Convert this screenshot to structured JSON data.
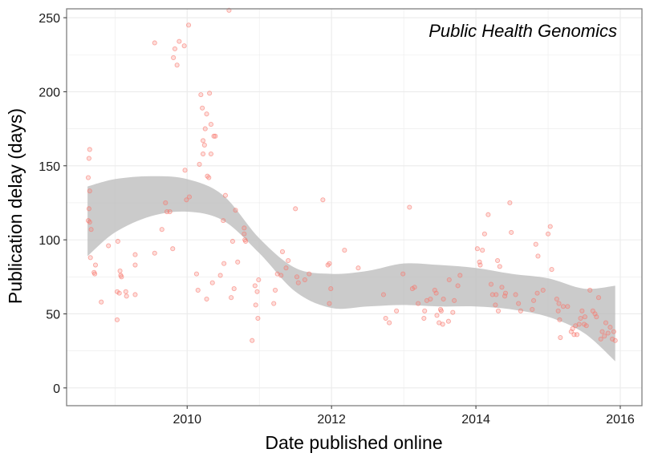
{
  "chart_data": {
    "type": "scatter",
    "title": "Public Health Genomics",
    "xlabel": "Date published online",
    "ylabel": "Publication delay (days)",
    "xlim": [
      2008.33,
      2016.3
    ],
    "ylim": [
      -12,
      256
    ],
    "x_ticks": [
      2010,
      2012,
      2014,
      2016
    ],
    "y_ticks": [
      0,
      50,
      100,
      150,
      200,
      250
    ],
    "grid": true,
    "legend": "none",
    "colors": {
      "point": "#f8766d",
      "band": "#bdbdbd",
      "panel_border": "#7f7f7f",
      "grid": "#ebebeb"
    },
    "series": [
      {
        "points": [
          [
            2008.65,
            161
          ],
          [
            2008.64,
            155
          ],
          [
            2008.63,
            142
          ],
          [
            2008.65,
            133
          ],
          [
            2008.64,
            121
          ],
          [
            2008.63,
            113
          ],
          [
            2008.65,
            112
          ],
          [
            2008.67,
            107
          ],
          [
            2008.66,
            88
          ],
          [
            2008.73,
            83
          ],
          [
            2008.71,
            78
          ],
          [
            2008.72,
            77
          ],
          [
            2008.81,
            58
          ],
          [
            2008.91,
            96
          ],
          [
            2009.04,
            99
          ],
          [
            2009.03,
            65
          ],
          [
            2009.06,
            64
          ],
          [
            2009.07,
            79
          ],
          [
            2009.08,
            76
          ],
          [
            2009.09,
            75
          ],
          [
            2009.03,
            46
          ],
          [
            2009.15,
            65
          ],
          [
            2009.16,
            62
          ],
          [
            2009.28,
            90
          ],
          [
            2009.28,
            83
          ],
          [
            2009.28,
            63
          ],
          [
            2009.55,
            233
          ],
          [
            2009.55,
            91
          ],
          [
            2009.65,
            107
          ],
          [
            2009.7,
            125
          ],
          [
            2009.72,
            119
          ],
          [
            2009.76,
            119
          ],
          [
            2009.8,
            94
          ],
          [
            2009.81,
            223
          ],
          [
            2009.83,
            229
          ],
          [
            2009.86,
            218
          ],
          [
            2009.89,
            234
          ],
          [
            2009.96,
            231
          ],
          [
            2009.99,
            127
          ],
          [
            2009.97,
            147
          ],
          [
            2010.02,
            245
          ],
          [
            2010.03,
            129
          ],
          [
            2010.13,
            77
          ],
          [
            2010.15,
            66
          ],
          [
            2010.17,
            151
          ],
          [
            2010.19,
            198
          ],
          [
            2010.21,
            189
          ],
          [
            2010.22,
            158
          ],
          [
            2010.24,
            164
          ],
          [
            2010.22,
            167
          ],
          [
            2010.25,
            175
          ],
          [
            2010.27,
            185
          ],
          [
            2010.28,
            143
          ],
          [
            2010.3,
            142
          ],
          [
            2010.31,
            199
          ],
          [
            2010.27,
            60
          ],
          [
            2010.33,
            178
          ],
          [
            2010.33,
            158
          ],
          [
            2010.35,
            71
          ],
          [
            2010.37,
            170
          ],
          [
            2010.39,
            170
          ],
          [
            2010.46,
            76
          ],
          [
            2010.5,
            113
          ],
          [
            2010.51,
            84
          ],
          [
            2010.53,
            130
          ],
          [
            2010.58,
            255
          ],
          [
            2010.61,
            61
          ],
          [
            2010.63,
            99
          ],
          [
            2010.65,
            67
          ],
          [
            2010.67,
            120
          ],
          [
            2010.7,
            85
          ],
          [
            2010.79,
            104
          ],
          [
            2010.8,
            100
          ],
          [
            2010.79,
            108
          ],
          [
            2010.81,
            99
          ],
          [
            2010.9,
            32
          ],
          [
            2010.94,
            69
          ],
          [
            2010.95,
            56
          ],
          [
            2010.97,
            65
          ],
          [
            2010.98,
            47
          ],
          [
            2010.99,
            73
          ],
          [
            2011.2,
            57
          ],
          [
            2011.22,
            66
          ],
          [
            2011.25,
            77
          ],
          [
            2011.3,
            76
          ],
          [
            2011.32,
            92
          ],
          [
            2011.37,
            81
          ],
          [
            2011.4,
            86
          ],
          [
            2011.5,
            121
          ],
          [
            2011.52,
            75
          ],
          [
            2011.54,
            71
          ],
          [
            2011.63,
            73
          ],
          [
            2011.69,
            77
          ],
          [
            2011.88,
            127
          ],
          [
            2011.95,
            83
          ],
          [
            2011.97,
            57
          ],
          [
            2011.97,
            84
          ],
          [
            2011.99,
            67
          ],
          [
            2012.18,
            93
          ],
          [
            2012.37,
            81
          ],
          [
            2012.72,
            63
          ],
          [
            2012.75,
            47
          ],
          [
            2012.8,
            44
          ],
          [
            2012.9,
            52
          ],
          [
            2012.99,
            77
          ],
          [
            2013.08,
            122
          ],
          [
            2013.12,
            67
          ],
          [
            2013.15,
            68
          ],
          [
            2013.2,
            57
          ],
          [
            2013.28,
            47
          ],
          [
            2013.29,
            52
          ],
          [
            2013.32,
            59
          ],
          [
            2013.37,
            60
          ],
          [
            2013.43,
            66
          ],
          [
            2013.45,
            64
          ],
          [
            2013.46,
            49
          ],
          [
            2013.49,
            44
          ],
          [
            2013.51,
            53
          ],
          [
            2013.52,
            52
          ],
          [
            2013.54,
            43
          ],
          [
            2013.55,
            60
          ],
          [
            2013.62,
            45
          ],
          [
            2013.63,
            73
          ],
          [
            2013.68,
            51
          ],
          [
            2013.7,
            59
          ],
          [
            2013.75,
            69
          ],
          [
            2013.78,
            76
          ],
          [
            2014.02,
            94
          ],
          [
            2014.05,
            85
          ],
          [
            2014.06,
            83
          ],
          [
            2014.09,
            93
          ],
          [
            2014.12,
            104
          ],
          [
            2014.17,
            117
          ],
          [
            2014.21,
            70
          ],
          [
            2014.23,
            63
          ],
          [
            2014.27,
            56
          ],
          [
            2014.28,
            63
          ],
          [
            2014.3,
            86
          ],
          [
            2014.31,
            52
          ],
          [
            2014.33,
            82
          ],
          [
            2014.36,
            68
          ],
          [
            2014.4,
            62
          ],
          [
            2014.41,
            64
          ],
          [
            2014.47,
            125
          ],
          [
            2014.49,
            105
          ],
          [
            2014.55,
            63
          ],
          [
            2014.59,
            57
          ],
          [
            2014.62,
            52
          ],
          [
            2014.78,
            53
          ],
          [
            2014.8,
            59
          ],
          [
            2014.83,
            97
          ],
          [
            2014.85,
            64
          ],
          [
            2014.86,
            89
          ],
          [
            2014.93,
            66
          ],
          [
            2015.0,
            104
          ],
          [
            2015.03,
            109
          ],
          [
            2015.05,
            80
          ],
          [
            2015.12,
            60
          ],
          [
            2015.14,
            52
          ],
          [
            2015.15,
            57
          ],
          [
            2015.16,
            46
          ],
          [
            2015.17,
            34
          ],
          [
            2015.21,
            55
          ],
          [
            2015.27,
            55
          ],
          [
            2015.32,
            38
          ],
          [
            2015.34,
            40
          ],
          [
            2015.36,
            36
          ],
          [
            2015.38,
            42
          ],
          [
            2015.4,
            36
          ],
          [
            2015.43,
            43
          ],
          [
            2015.45,
            47
          ],
          [
            2015.47,
            52
          ],
          [
            2015.5,
            43
          ],
          [
            2015.51,
            48
          ],
          [
            2015.53,
            42
          ],
          [
            2015.58,
            66
          ],
          [
            2015.62,
            52
          ],
          [
            2015.65,
            50
          ],
          [
            2015.67,
            48
          ],
          [
            2015.7,
            61
          ],
          [
            2015.73,
            33
          ],
          [
            2015.75,
            38
          ],
          [
            2015.78,
            35
          ],
          [
            2015.8,
            44
          ],
          [
            2015.83,
            37
          ],
          [
            2015.86,
            41
          ],
          [
            2015.89,
            33
          ],
          [
            2015.91,
            38
          ],
          [
            2015.93,
            32
          ]
        ]
      }
    ],
    "smooth_band": {
      "x": [
        2008.62,
        2009.0,
        2009.5,
        2010.0,
        2010.5,
        2011.0,
        2011.5,
        2012.0,
        2012.5,
        2013.0,
        2013.5,
        2014.0,
        2014.5,
        2015.0,
        2015.5,
        2015.93
      ],
      "lower": [
        89,
        105,
        116,
        119,
        113,
        91,
        65,
        54,
        55,
        56,
        55,
        55,
        53,
        48,
        37,
        18
      ],
      "upper": [
        136,
        141,
        143,
        141,
        130,
        101,
        81,
        77,
        79,
        84,
        83,
        81,
        77,
        74,
        67,
        69
      ]
    }
  }
}
